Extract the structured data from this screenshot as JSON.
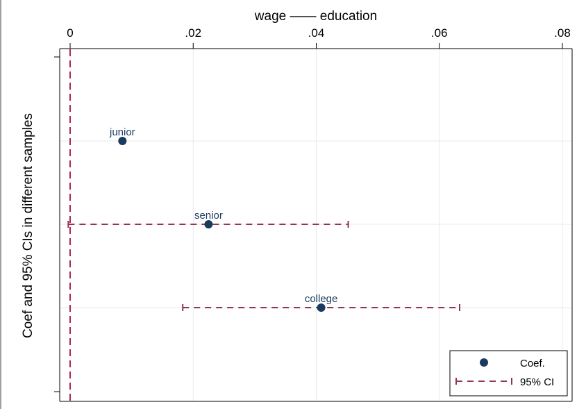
{
  "chart_data": {
    "type": "scatter",
    "title": "wage —— education",
    "ylabel": "Coef and 95% CIs in different samples",
    "x_axis_position": "top",
    "xlim": [
      0,
      0.08
    ],
    "xticks": [
      0,
      0.02,
      0.04,
      0.06,
      0.08
    ],
    "xtick_labels": [
      "0",
      ".02",
      ".04",
      ".06",
      ".08"
    ],
    "grid": true,
    "reference_line": {
      "x": 0,
      "style": "dashed",
      "color": "#b0264f"
    },
    "points": [
      {
        "label": "junior",
        "coef": 0.0085,
        "ci": null
      },
      {
        "label": "senior",
        "coef": 0.0225,
        "ci": [
          -0.0003,
          0.0452
        ]
      },
      {
        "label": "college",
        "coef": 0.0408,
        "ci": [
          0.0183,
          0.0633
        ]
      }
    ],
    "legend": {
      "placement": "bottom-right",
      "entries": [
        {
          "key": "coef",
          "label": "Coef."
        },
        {
          "key": "ci",
          "label": "95% CI"
        }
      ]
    },
    "colors": {
      "point": "#1a3b5f",
      "ci": "#96354a",
      "ref": "#b0264f",
      "grid": "#e6eaee",
      "label": "#1a3b5f"
    }
  }
}
